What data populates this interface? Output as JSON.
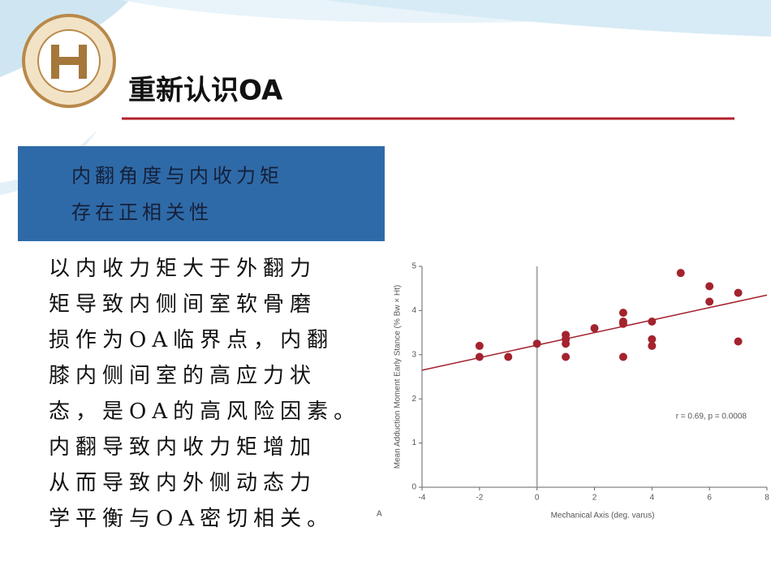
{
  "slide": {
    "title": "重新认识OA",
    "box_lines": [
      "内翻角度与内收力矩",
      "存在正相关性"
    ],
    "body_lines": [
      "以内收力矩大于外翻力",
      "矩导致内侧间室软骨磨",
      "损作为OA临界点，内翻",
      "膝内侧间室的高应力状",
      "态，是OA的高风险因素。",
      "内翻导致内收力矩增加",
      "从而导致内外侧动态力",
      "学平衡与OA密切相关。"
    ]
  },
  "chart_data": {
    "type": "scatter",
    "panel_label": "A",
    "x_label": "Mechanical Axis (deg. varus)",
    "y_label": "Mean Adduction Moment Early Stance (% Bw × Ht)",
    "annotation": "r = 0.69, p = 0.0008",
    "x": [
      -2,
      -2,
      -1,
      0,
      1,
      1,
      1,
      1,
      2,
      3,
      3,
      3,
      3,
      4,
      4,
      4,
      5,
      6,
      6,
      7,
      7
    ],
    "values": [
      3.2,
      2.95,
      2.95,
      3.25,
      3.45,
      3.35,
      3.25,
      2.95,
      3.6,
      3.95,
      3.75,
      3.7,
      2.95,
      3.75,
      3.35,
      3.2,
      4.85,
      4.55,
      4.2,
      4.4,
      3.3
    ],
    "color": "#a3232e",
    "fit": {
      "x": [
        -4,
        8
      ],
      "y": [
        2.65,
        4.35
      ],
      "color": "#a3232e"
    },
    "vline": 0,
    "xlim": [
      -4,
      8
    ],
    "xticks": [
      -4,
      -2,
      0,
      2,
      4,
      6,
      8
    ],
    "ylim": [
      0,
      5
    ],
    "yticks": [
      0,
      1,
      2,
      3,
      4,
      5
    ]
  }
}
